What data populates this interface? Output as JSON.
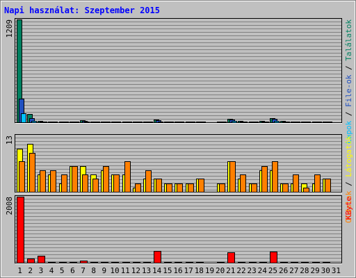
{
  "chart_data": {
    "type": "bar",
    "title": "Napi használat: Szeptember 2015",
    "categories": [
      "1",
      "2",
      "3",
      "4",
      "5",
      "6",
      "7",
      "8",
      "9",
      "10",
      "11",
      "12",
      "13",
      "14",
      "15",
      "16",
      "17",
      "18",
      "19",
      "20",
      "21",
      "22",
      "23",
      "24",
      "25",
      "26",
      "27",
      "28",
      "29",
      "30",
      "31"
    ],
    "weekend_days": [
      5,
      6,
      12,
      13,
      19,
      20,
      26,
      27
    ],
    "panels": [
      {
        "ymax_label": "1209",
        "ymax": 1209,
        "series": [
          {
            "name": "Találatok",
            "color": "#008060",
            "values": [
              1209,
              100,
              18,
              12,
              6,
              6,
              25,
              12,
              12,
              12,
              12,
              6,
              8,
              30,
              6,
              6,
              6,
              6,
              0,
              6,
              40,
              18,
              8,
              14,
              50,
              14,
              8,
              8,
              6,
              6,
              0
            ]
          },
          {
            "name": "File-ok",
            "color": "#2050c0",
            "values": [
              280,
              50,
              12,
              8,
              4,
              4,
              18,
              8,
              8,
              8,
              8,
              4,
              6,
              22,
              4,
              4,
              4,
              4,
              0,
              4,
              30,
              12,
              6,
              10,
              40,
              10,
              6,
              6,
              4,
              4,
              0
            ]
          },
          {
            "name": "Lapok",
            "color": "#00c0ff",
            "values": [
              110,
              20,
              6,
              4,
              2,
              2,
              8,
              4,
              4,
              4,
              4,
              2,
              3,
              10,
              2,
              2,
              2,
              2,
              0,
              2,
              14,
              6,
              3,
              5,
              18,
              5,
              3,
              3,
              2,
              2,
              0
            ]
          }
        ],
        "legend_parts": [
          {
            "text": "Lapok",
            "color": "#00c0ff"
          },
          {
            "text": " / ",
            "color": "#000000"
          },
          {
            "text": "File-ok",
            "color": "#2050c0"
          },
          {
            "text": " / ",
            "color": "#000000"
          },
          {
            "text": "Találatok",
            "color": "#008060"
          }
        ]
      },
      {
        "ymax_label": "13",
        "ymax": 13,
        "series": [
          {
            "name": "Látogatók",
            "color": "#ffff00",
            "values": [
              10,
              11,
              4,
              4,
              2,
              6,
              6,
              4,
              5,
              4,
              4,
              1,
              3,
              3,
              2,
              2,
              2,
              3,
              0,
              2,
              7,
              3,
              2,
              5,
              5,
              2,
              2,
              2,
              2,
              3,
              0
            ]
          },
          {
            "name": "Oldalak",
            "color": "#ff8000",
            "values": [
              7,
              9,
              5,
              5,
              4,
              6,
              4,
              3,
              6,
              4,
              7,
              2,
              5,
              3,
              2,
              2,
              2,
              3,
              0,
              2,
              7,
              4,
              2,
              6,
              7,
              2,
              4,
              1,
              4,
              3,
              0
            ]
          }
        ],
        "legend_parts": [
          {
            "text": "Oldalak",
            "color": "#ff8000"
          },
          {
            "text": " / ",
            "color": "#000000"
          },
          {
            "text": "Látogatók",
            "color": "#ffff00"
          }
        ]
      },
      {
        "ymax_label": "2008",
        "ymax": 2008,
        "series": [
          {
            "name": "KByte",
            "color": "#ff0000",
            "values": [
              2008,
              120,
              210,
              30,
              20,
              20,
              70,
              20,
              20,
              20,
              20,
              20,
              20,
              350,
              20,
              20,
              20,
              20,
              0,
              20,
              320,
              20,
              20,
              20,
              340,
              20,
              20,
              20,
              20,
              20,
              0
            ]
          }
        ],
        "legend_parts": [
          {
            "text": "KByte",
            "color": "#ff0000"
          }
        ]
      }
    ]
  },
  "colors": {
    "background": "#c0c0c0",
    "outer_border": "#808080",
    "title": "#0000ff",
    "weekday_label": "#000000",
    "weekend_label": "#00805c"
  }
}
